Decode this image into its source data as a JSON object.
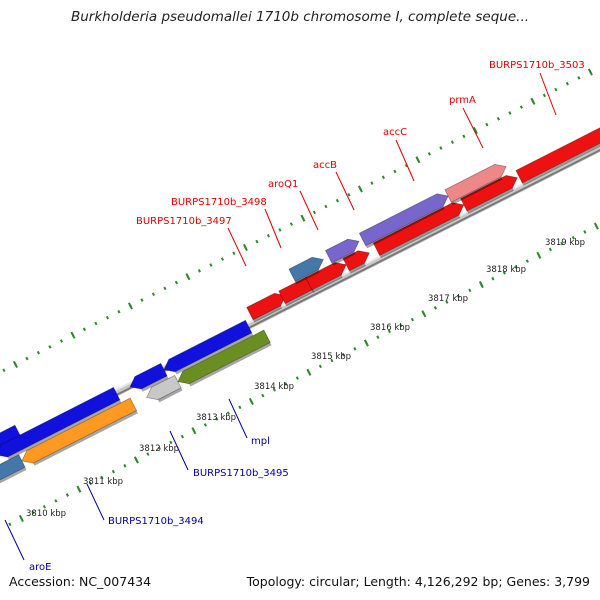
{
  "title": "Burkholderia pseudomallei 1710b chromosome I, complete seque...",
  "footer": {
    "accession": "Accession: NC_007434",
    "topology": "Topology: circular; Length: 4,126,292 bp; Genes: 3,799"
  },
  "colors": {
    "forward_label": "#dd0000",
    "reverse_label": "#000099",
    "backbone": "#8a8a8a",
    "tick": "#2a8a2a",
    "red": "#ee1111",
    "blue": "#1111dd",
    "purple": "#7766cc",
    "steelblue": "#4477aa",
    "pink": "#ee8888",
    "green": "#6b8e23",
    "orange": "#ff9922",
    "gray": "#c8c8c8"
  },
  "kbp_labels": [
    "3810 kbp",
    "3811 kbp",
    "3812 kbp",
    "3813 kbp",
    "3814 kbp",
    "3815 kbp",
    "3816 kbp",
    "3817 kbp",
    "3818 kbp",
    "3819 kbp"
  ],
  "forward_genes": [
    {
      "label": "BURPS1710b_3497",
      "color": "red",
      "strand": "forward"
    },
    {
      "label": "BURPS1710b_3498",
      "color": "red",
      "strand": "forward"
    },
    {
      "label": "aroQ1",
      "color": "steelblue",
      "strand": "forward"
    },
    {
      "label": "accB",
      "color": "purple",
      "strand": "forward"
    },
    {
      "label": "accC",
      "color": "purple",
      "strand": "forward"
    },
    {
      "label": "prmA",
      "color": "pink",
      "strand": "forward"
    },
    {
      "label": "BURPS1710b_3503",
      "color": "red",
      "strand": "forward"
    }
  ],
  "reverse_genes": [
    {
      "label": "aroE",
      "color": "steelblue",
      "strand": "reverse"
    },
    {
      "label": "BURPS1710b_3494",
      "color": "orange",
      "strand": "reverse"
    },
    {
      "label": "BURPS1710b_3495",
      "color": "gray",
      "strand": "reverse"
    },
    {
      "label": "mpl",
      "color": "green",
      "strand": "reverse"
    }
  ]
}
